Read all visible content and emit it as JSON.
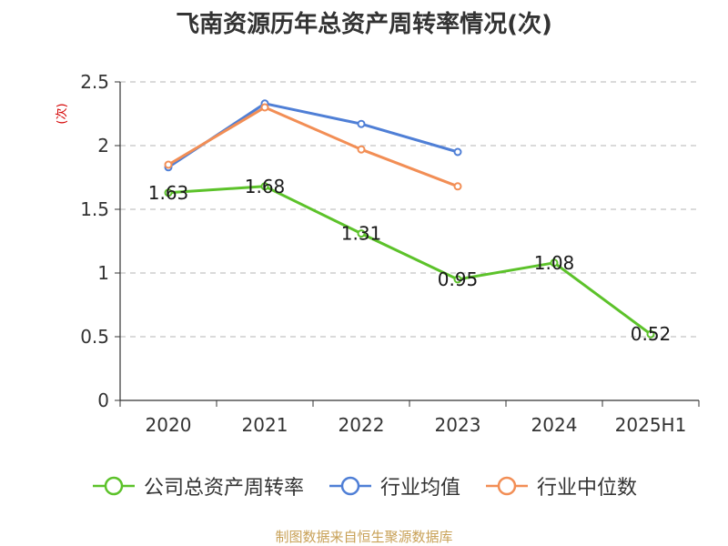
{
  "title": "飞南资源历年总资产周转率情况(次)",
  "source": "制图数据来自恒生聚源数据库",
  "chart_data": {
    "type": "line",
    "title": "飞南资源历年总资产周转率情况(次)",
    "ylabel": "(次)",
    "xlabel": "",
    "categories": [
      "2020",
      "2021",
      "2022",
      "2023",
      "2024",
      "2025H1"
    ],
    "ylim": [
      0,
      2.5
    ],
    "yticks": [
      "0",
      "0.5",
      "1",
      "1.5",
      "2",
      "2.5"
    ],
    "grid": "horizontal dashed",
    "legend_position": "bottom",
    "series": [
      {
        "name": "公司总资产周转率",
        "color": "#5cc22a",
        "values": [
          1.63,
          1.68,
          1.31,
          0.95,
          1.08,
          0.52
        ],
        "labels": [
          "1.63",
          "1.68",
          "1.31",
          "0.95",
          "1.08",
          "0.52"
        ]
      },
      {
        "name": "行业均值",
        "color": "#4f7fd6",
        "values": [
          1.83,
          2.33,
          2.17,
          1.95,
          null,
          null
        ]
      },
      {
        "name": "行业中位数",
        "color": "#f28e55",
        "values": [
          1.85,
          2.3,
          1.97,
          1.68,
          null,
          null
        ]
      }
    ]
  }
}
